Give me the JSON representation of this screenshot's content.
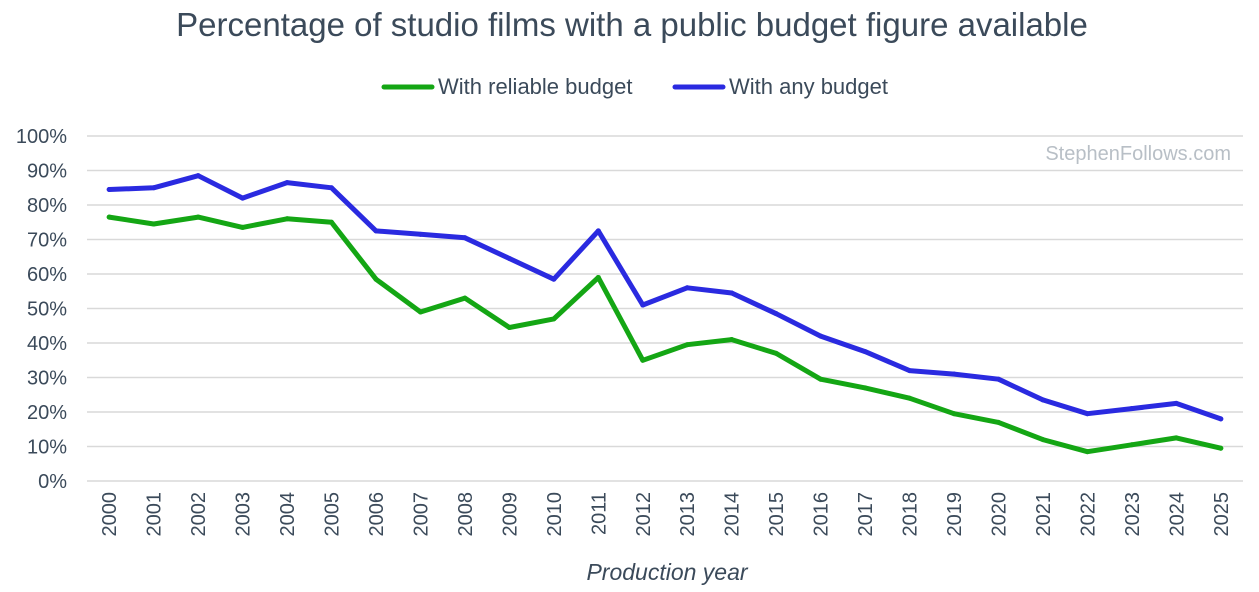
{
  "chart_data": {
    "type": "line",
    "title": "Percentage of studio films with a public budget figure available",
    "xlabel": "Production year",
    "ylabel": "",
    "ylim": [
      0,
      100
    ],
    "yticks": [
      "0%",
      "10%",
      "20%",
      "30%",
      "40%",
      "50%",
      "60%",
      "70%",
      "80%",
      "90%",
      "100%"
    ],
    "grid": true,
    "legend_position": "top-center",
    "watermark": "StephenFollows.com",
    "categories": [
      "2000",
      "2001",
      "2002",
      "2003",
      "2004",
      "2005",
      "2006",
      "2007",
      "2008",
      "2009",
      "2010",
      "2011",
      "2012",
      "2013",
      "2014",
      "2015",
      "2016",
      "2017",
      "2018",
      "2019",
      "2020",
      "2021",
      "2022",
      "2023",
      "2024",
      "2025"
    ],
    "series": [
      {
        "name": "With reliable budget",
        "color": "#14a614",
        "values": [
          76.5,
          74.5,
          76.5,
          73.5,
          76,
          75,
          58.5,
          49,
          53,
          44.5,
          47,
          59,
          35,
          39.5,
          41,
          37,
          29.5,
          27,
          24,
          19.5,
          17,
          12,
          8.5,
          10.5,
          12.5,
          9.5
        ]
      },
      {
        "name": "With any budget",
        "color": "#2a2ae0",
        "values": [
          84.5,
          85,
          88.5,
          82,
          86.5,
          85,
          72.5,
          71.5,
          70.5,
          64.5,
          58.5,
          72.5,
          51,
          56,
          54.5,
          48.5,
          42,
          37.5,
          32,
          31,
          29.5,
          23.5,
          19.5,
          21,
          22.5,
          18
        ]
      }
    ]
  }
}
